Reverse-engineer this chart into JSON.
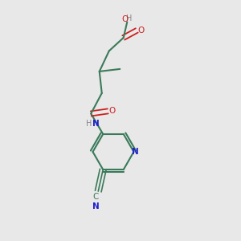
{
  "background_color": "#e8e8e8",
  "fig_width": 3.0,
  "fig_height": 3.0,
  "dpi": 100,
  "bond_color": "#3a7a5a",
  "bond_lw": 1.5,
  "N_color": "#2020cc",
  "O_color": "#cc2020",
  "C_color": "#3a7a5a",
  "text_color_dark": "#3a7a5a",
  "bond_color_N": "#2222bb",
  "xlim": [
    0,
    10
  ],
  "ylim": [
    0,
    10
  ]
}
